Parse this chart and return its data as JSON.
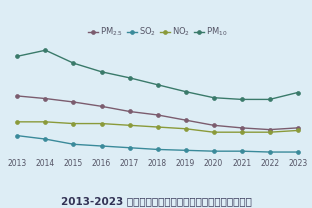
{
  "title": "2013-2023 年空气中主要污染物年平均浓度值变化趋势图",
  "years": [
    2013,
    2014,
    2015,
    2016,
    2017,
    2018,
    2019,
    2020,
    2021,
    2022,
    2023
  ],
  "series_order": [
    "PM10",
    "PM2.5",
    "NO2",
    "SO2"
  ],
  "series": {
    "PM2.5": {
      "values": [
        72,
        69,
        65,
        60,
        54,
        50,
        44,
        38,
        35,
        33,
        35
      ],
      "color": "#7b5c6e",
      "label": "PM$_{2.5}$"
    },
    "SO2": {
      "values": [
        26,
        22,
        16,
        14,
        12,
        10,
        9,
        8,
        8,
        7,
        7
      ],
      "color": "#3a8a9a",
      "label": "SO$_2$"
    },
    "NO2": {
      "values": [
        42,
        42,
        40,
        40,
        38,
        36,
        34,
        30,
        30,
        30,
        32
      ],
      "color": "#8a9a3a",
      "label": "NO$_2$"
    },
    "PM10": {
      "values": [
        118,
        125,
        110,
        100,
        93,
        85,
        77,
        70,
        68,
        68,
        76
      ],
      "color": "#3a7a6a",
      "label": "PM$_{10}$"
    }
  },
  "legend_order": [
    "PM2.5",
    "SO2",
    "NO2",
    "PM10"
  ],
  "bg_color": "#ddedf5",
  "plot_bg_color": "#ddedf5",
  "ylim": [
    0,
    135
  ],
  "grid_color": "#b8c8d0",
  "title_fontsize": 7.5,
  "legend_fontsize": 6.0,
  "tick_fontsize": 5.5,
  "title_color": "#333355"
}
